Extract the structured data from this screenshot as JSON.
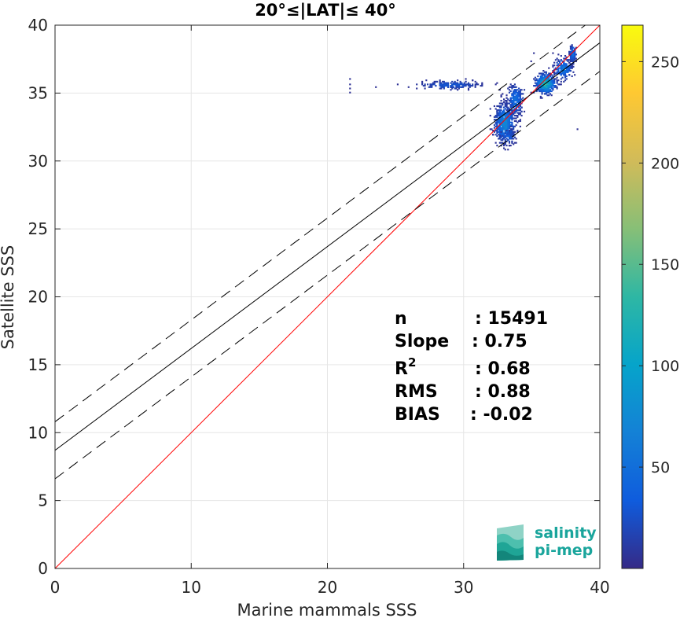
{
  "chart_data": {
    "type": "scatter",
    "title": "20°≤|LAT|≤ 40°",
    "xlabel": "Marine mammals SSS",
    "ylabel": "Satellite SSS",
    "xlim": [
      0,
      40
    ],
    "ylim": [
      0,
      40
    ],
    "xticks": [
      "0",
      "10",
      "20",
      "30",
      "40"
    ],
    "yticks": [
      "0",
      "5",
      "10",
      "15",
      "20",
      "25",
      "30",
      "35",
      "40"
    ],
    "grid": true,
    "lines": [
      {
        "name": "1:1",
        "style": "solid",
        "color": "#ff0000",
        "slope": 1,
        "intercept": 0
      },
      {
        "name": "fit",
        "style": "solid",
        "color": "#000000",
        "slope": 0.75,
        "intercept": 8.7
      },
      {
        "name": "fit+",
        "style": "dashed",
        "color": "#000000",
        "slope": 0.75,
        "intercept": 10.8
      },
      {
        "name": "fit-",
        "style": "dashed",
        "color": "#000000",
        "slope": 0.75,
        "intercept": 6.6
      }
    ],
    "density_clusters": [
      {
        "x": 33.0,
        "y": 32.8,
        "sx": 0.35,
        "sy": 0.7,
        "count": 620,
        "peak": 0.55
      },
      {
        "x": 33.8,
        "y": 34.5,
        "sx": 0.3,
        "sy": 0.6,
        "count": 260,
        "peak": 0.35
      },
      {
        "x": 36.0,
        "y": 35.7,
        "sx": 0.35,
        "sy": 0.35,
        "count": 520,
        "peak": 1.0
      },
      {
        "x": 37.3,
        "y": 36.8,
        "sx": 0.35,
        "sy": 0.4,
        "count": 200,
        "peak": 0.4
      },
      {
        "x": 38.0,
        "y": 37.9,
        "sx": 0.12,
        "sy": 0.35,
        "count": 120,
        "peak": 0.35
      },
      {
        "x": 29.0,
        "y": 35.6,
        "sx": 1.2,
        "sy": 0.15,
        "count": 200,
        "peak": 0.2
      },
      {
        "x": 33.3,
        "y": 31.8,
        "sx": 0.25,
        "sy": 0.25,
        "count": 60,
        "peak": 0.25
      }
    ],
    "sparse_points": [
      {
        "x": 21.6,
        "y": 35.6
      },
      {
        "x": 21.6,
        "y": 35.3
      },
      {
        "x": 21.6,
        "y": 35.0
      },
      {
        "x": 21.6,
        "y": 36.0
      },
      {
        "x": 23.5,
        "y": 35.4
      },
      {
        "x": 38.3,
        "y": 32.3
      },
      {
        "x": 34.9,
        "y": 37.3
      },
      {
        "x": 35.1,
        "y": 37.9
      }
    ],
    "stats": [
      {
        "label": "n",
        "value": ": 15491"
      },
      {
        "label": "Slope",
        "value": ": 0.75"
      },
      {
        "label": "R2",
        "value": ": 0.68"
      },
      {
        "label": "RMS",
        "value": ": 0.88"
      },
      {
        "label": "BIAS",
        "value": ": -0.02"
      }
    ],
    "colorbar": {
      "min": 0,
      "max": 268,
      "ticks": [
        "50",
        "100",
        "150",
        "200",
        "250"
      ],
      "tick_values": [
        50,
        100,
        150,
        200,
        250
      ],
      "colormap": "parula",
      "colormap_stops": [
        "#352a87",
        "#0f5cdd",
        "#1481d6",
        "#06a4ca",
        "#2eb7a4",
        "#87bf77",
        "#d1bb59",
        "#fec832",
        "#f9fb0e"
      ]
    }
  },
  "logo": {
    "line1": "salinity",
    "line2": "pi-mep"
  }
}
